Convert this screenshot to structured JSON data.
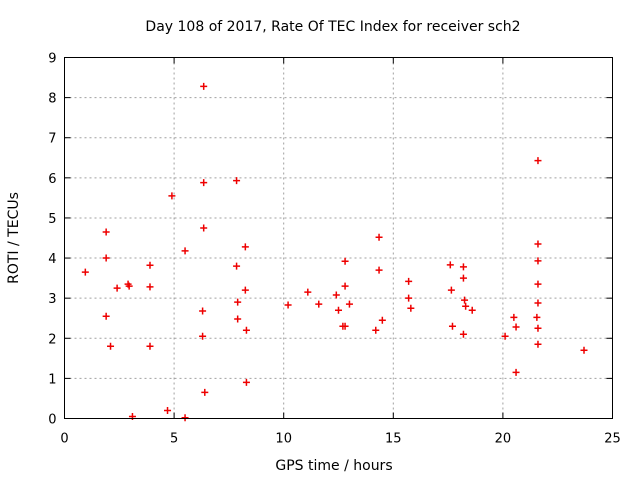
{
  "chart_data": {
    "type": "scatter",
    "title": "Day 108 of 2017, Rate Of TEC Index for receiver sch2",
    "xlabel": "GPS time / hours",
    "ylabel": "ROTI / TECUs",
    "xlim": [
      0,
      25
    ],
    "ylim": [
      0,
      9
    ],
    "xticks": [
      0,
      5,
      10,
      15,
      20,
      25
    ],
    "yticks": [
      0,
      1,
      2,
      3,
      4,
      5,
      6,
      7,
      8,
      9
    ],
    "xtick_labels": [
      "0",
      "5",
      "10",
      "15",
      "20",
      "25"
    ],
    "ytick_labels": [
      "0",
      "1",
      "2",
      "3",
      "4",
      "5",
      "6",
      "7",
      "8",
      "9"
    ],
    "grid": true,
    "marker": "+",
    "color": "#ee0000",
    "series": [
      {
        "name": "ROTI",
        "x": [
          0.95,
          1.9,
          1.9,
          1.9,
          2.4,
          2.9,
          2.95,
          3.9,
          3.9,
          4.9,
          5.5,
          6.35,
          6.35,
          6.35,
          6.3,
          6.3,
          6.4,
          7.85,
          7.85,
          7.9,
          7.9,
          8.25,
          8.25,
          8.3,
          8.3,
          10.2,
          11.1,
          12.4,
          12.5,
          12.8,
          12.8,
          12.8,
          13.0,
          12.7,
          14.35,
          14.35,
          14.2,
          14.5,
          15.7,
          15.7,
          15.8,
          17.6,
          17.65,
          17.7,
          18.2,
          18.2,
          18.25,
          18.3,
          18.6,
          18.2,
          20.1,
          20.5,
          20.6,
          20.6,
          21.6,
          21.6,
          21.6,
          21.6,
          21.6,
          21.55,
          21.6,
          21.6,
          23.7,
          2.1,
          5.5,
          4.7,
          11.6,
          3.9,
          3.1
        ],
        "y": [
          3.65,
          4.65,
          4.0,
          2.55,
          3.25,
          3.35,
          3.3,
          3.82,
          3.28,
          5.55,
          4.18,
          8.28,
          5.88,
          4.75,
          2.68,
          2.05,
          0.65,
          5.93,
          3.8,
          2.9,
          2.48,
          4.28,
          3.2,
          2.2,
          0.9,
          2.83,
          3.15,
          3.08,
          2.7,
          3.92,
          3.3,
          2.3,
          2.85,
          2.3,
          4.52,
          3.7,
          2.2,
          2.45,
          3.42,
          3.0,
          2.75,
          3.83,
          3.2,
          2.3,
          3.78,
          3.5,
          2.95,
          2.8,
          2.7,
          2.1,
          2.05,
          2.52,
          2.28,
          1.15,
          6.43,
          4.35,
          3.93,
          3.35,
          2.88,
          2.52,
          2.25,
          1.85,
          1.7,
          1.8,
          0.02,
          0.2,
          2.85,
          1.8,
          0.05
        ]
      }
    ]
  }
}
